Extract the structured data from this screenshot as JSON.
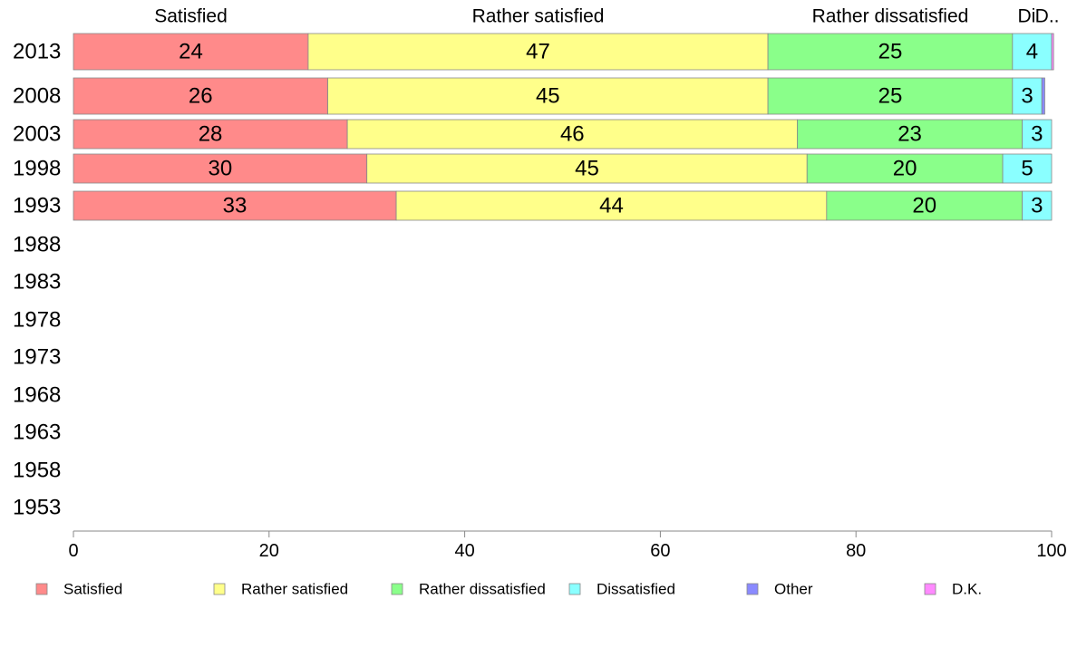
{
  "chart_data": {
    "type": "bar",
    "orientation": "horizontal",
    "stacked": true,
    "categories": [
      "2013",
      "2008",
      "2003",
      "1998",
      "1993",
      "1988",
      "1983",
      "1978",
      "1973",
      "1968",
      "1963",
      "1958",
      "1953"
    ],
    "series": [
      {
        "name": "Satisfied",
        "color": "#ff8a8a",
        "values": [
          24,
          26,
          28,
          30,
          33,
          null,
          null,
          null,
          null,
          null,
          null,
          null,
          null
        ]
      },
      {
        "name": "Rather satisfied",
        "color": "#ffff8a",
        "values": [
          47,
          45,
          46,
          45,
          44,
          null,
          null,
          null,
          null,
          null,
          null,
          null,
          null
        ]
      },
      {
        "name": "Rather dissatisfied",
        "color": "#8aff8a",
        "values": [
          25,
          25,
          23,
          20,
          20,
          null,
          null,
          null,
          null,
          null,
          null,
          null,
          null
        ]
      },
      {
        "name": "Dissatisfied",
        "color": "#8affff",
        "values": [
          4,
          3,
          3,
          5,
          3,
          null,
          null,
          null,
          null,
          null,
          null,
          null,
          null
        ]
      },
      {
        "name": "Other",
        "color": "#8a8aff",
        "values": [
          0,
          0.3,
          0,
          0,
          0,
          null,
          null,
          null,
          null,
          null,
          null,
          null,
          null
        ]
      },
      {
        "name": "D.K.",
        "color": "#ff8aff",
        "values": [
          0.2,
          0,
          0,
          0,
          0,
          null,
          null,
          null,
          null,
          null,
          null,
          null,
          null
        ]
      }
    ],
    "top_labels": [
      "Satisfied",
      "Rather satisfied",
      "Rather dissatisfied",
      "Di",
      "D.."
    ],
    "xlim": [
      0,
      100
    ],
    "xticks": [
      0,
      20,
      40,
      60,
      80,
      100
    ],
    "grid": false,
    "legend_position": "bottom"
  }
}
